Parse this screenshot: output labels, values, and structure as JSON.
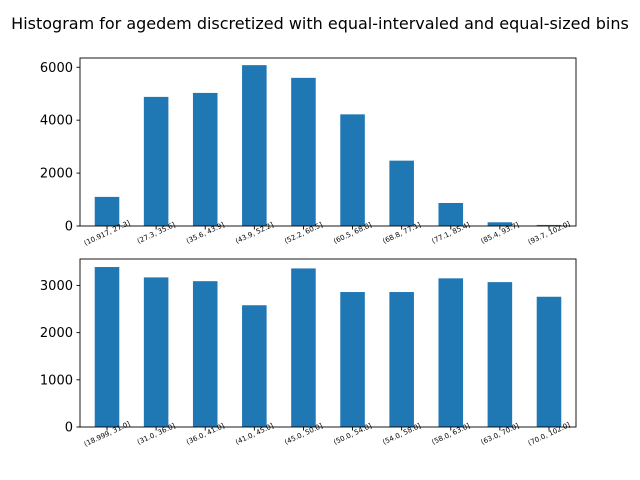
{
  "title": "Histogram for agedem discretized with equal-intervaled and equal-sized bins",
  "chart_data": [
    {
      "type": "bar",
      "name": "equal-intervaled",
      "categories": [
        "(10.917, 27.3]",
        "(27.3, 35.6]",
        "(35.6, 43.9]",
        "(43.9, 52.2]",
        "(52.2, 60.5]",
        "(60.5, 68.8]",
        "(68.8, 77.1]",
        "(77.1, 85.4]",
        "(85.4, 93.7]",
        "(93.7, 102.0]"
      ],
      "values": [
        1100,
        4880,
        5030,
        6080,
        5600,
        4220,
        2470,
        870,
        140,
        40
      ],
      "ylim": [
        0,
        6350
      ],
      "yticks": [
        0,
        2000,
        4000,
        6000
      ],
      "xlabel": "",
      "ylabel": ""
    },
    {
      "type": "bar",
      "name": "equal-sized",
      "categories": [
        "(18.999, 31.0]",
        "(31.0, 36.0]",
        "(36.0, 41.0]",
        "(41.0, 45.0]",
        "(45.0, 50.0]",
        "(50.0, 54.0]",
        "(54.0, 58.0]",
        "(58.0, 63.0]",
        "(63.0, 70.0]",
        "(70.0, 102.0]"
      ],
      "values": [
        3390,
        3170,
        3090,
        2580,
        3360,
        2860,
        2860,
        3150,
        3070,
        2760
      ],
      "ylim": [
        0,
        3560
      ],
      "yticks": [
        0,
        1000,
        2000,
        3000
      ],
      "xlabel": "",
      "ylabel": ""
    }
  ]
}
